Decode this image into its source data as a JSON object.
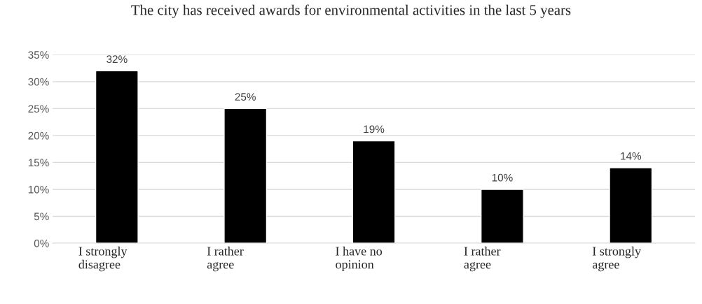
{
  "chart_data": {
    "type": "bar",
    "title": "The city has received awards for environmental activities in the last 5 years",
    "categories": [
      "I strongly disagree",
      "I rather agree",
      "I have no opinion",
      "I rather agree",
      "I strongly agree"
    ],
    "values": [
      32,
      25,
      19,
      10,
      14
    ],
    "color": "#000000",
    "value_labels": [
      "32%",
      "25%",
      "19%",
      "10%",
      "14%"
    ],
    "ylim": [
      0,
      35
    ],
    "yticks": [
      {
        "value": 0,
        "label": "0%"
      },
      {
        "value": 5,
        "label": "5%"
      },
      {
        "value": 10,
        "label": "10%"
      },
      {
        "value": 15,
        "label": "15%"
      },
      {
        "value": 20,
        "label": "20%"
      },
      {
        "value": 25,
        "label": "25%"
      },
      {
        "value": 30,
        "label": "30%"
      },
      {
        "value": 35,
        "label": "35%"
      }
    ],
    "grid": "y"
  }
}
